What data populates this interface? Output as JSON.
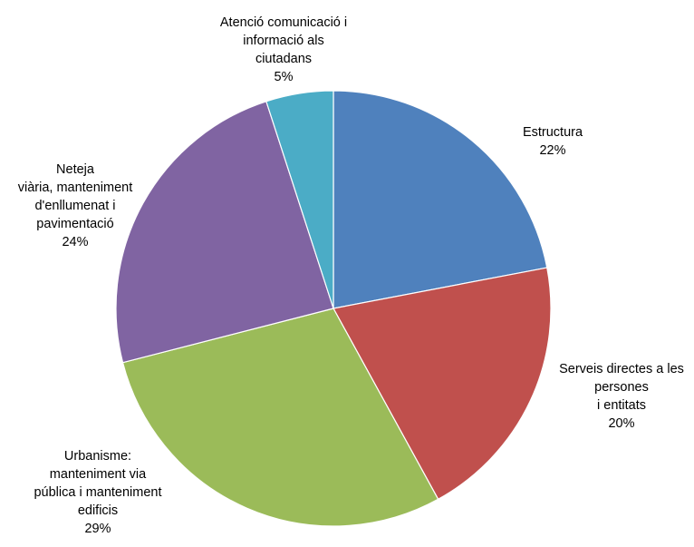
{
  "chart_data": {
    "type": "pie",
    "title": "",
    "slices": [
      {
        "label": [
          "Estructura"
        ],
        "percent_label": "22%",
        "value": 22,
        "color": "#4F81BD"
      },
      {
        "label": [
          "Serveis directes a les",
          "persones",
          "i entitats"
        ],
        "percent_label": "20%",
        "value": 20,
        "color": "#C0504D"
      },
      {
        "label": [
          "Urbanisme:",
          "manteniment via",
          "pública i manteniment",
          "edificis"
        ],
        "percent_label": "29%",
        "value": 29,
        "color": "#9BBB59"
      },
      {
        "label": [
          "Neteja",
          "viària, manteniment",
          "d'enllumenat i",
          "pavimentació"
        ],
        "percent_label": "24%",
        "value": 24,
        "color": "#8064A2"
      },
      {
        "label": [
          "Atenció comunicació i",
          "informació als",
          "ciutadans"
        ],
        "percent_label": "5%",
        "value": 5,
        "color": "#4BACC6"
      }
    ],
    "start_angle_deg": 0,
    "direction": "clockwise",
    "legend": "none",
    "data_labels": "outside"
  }
}
